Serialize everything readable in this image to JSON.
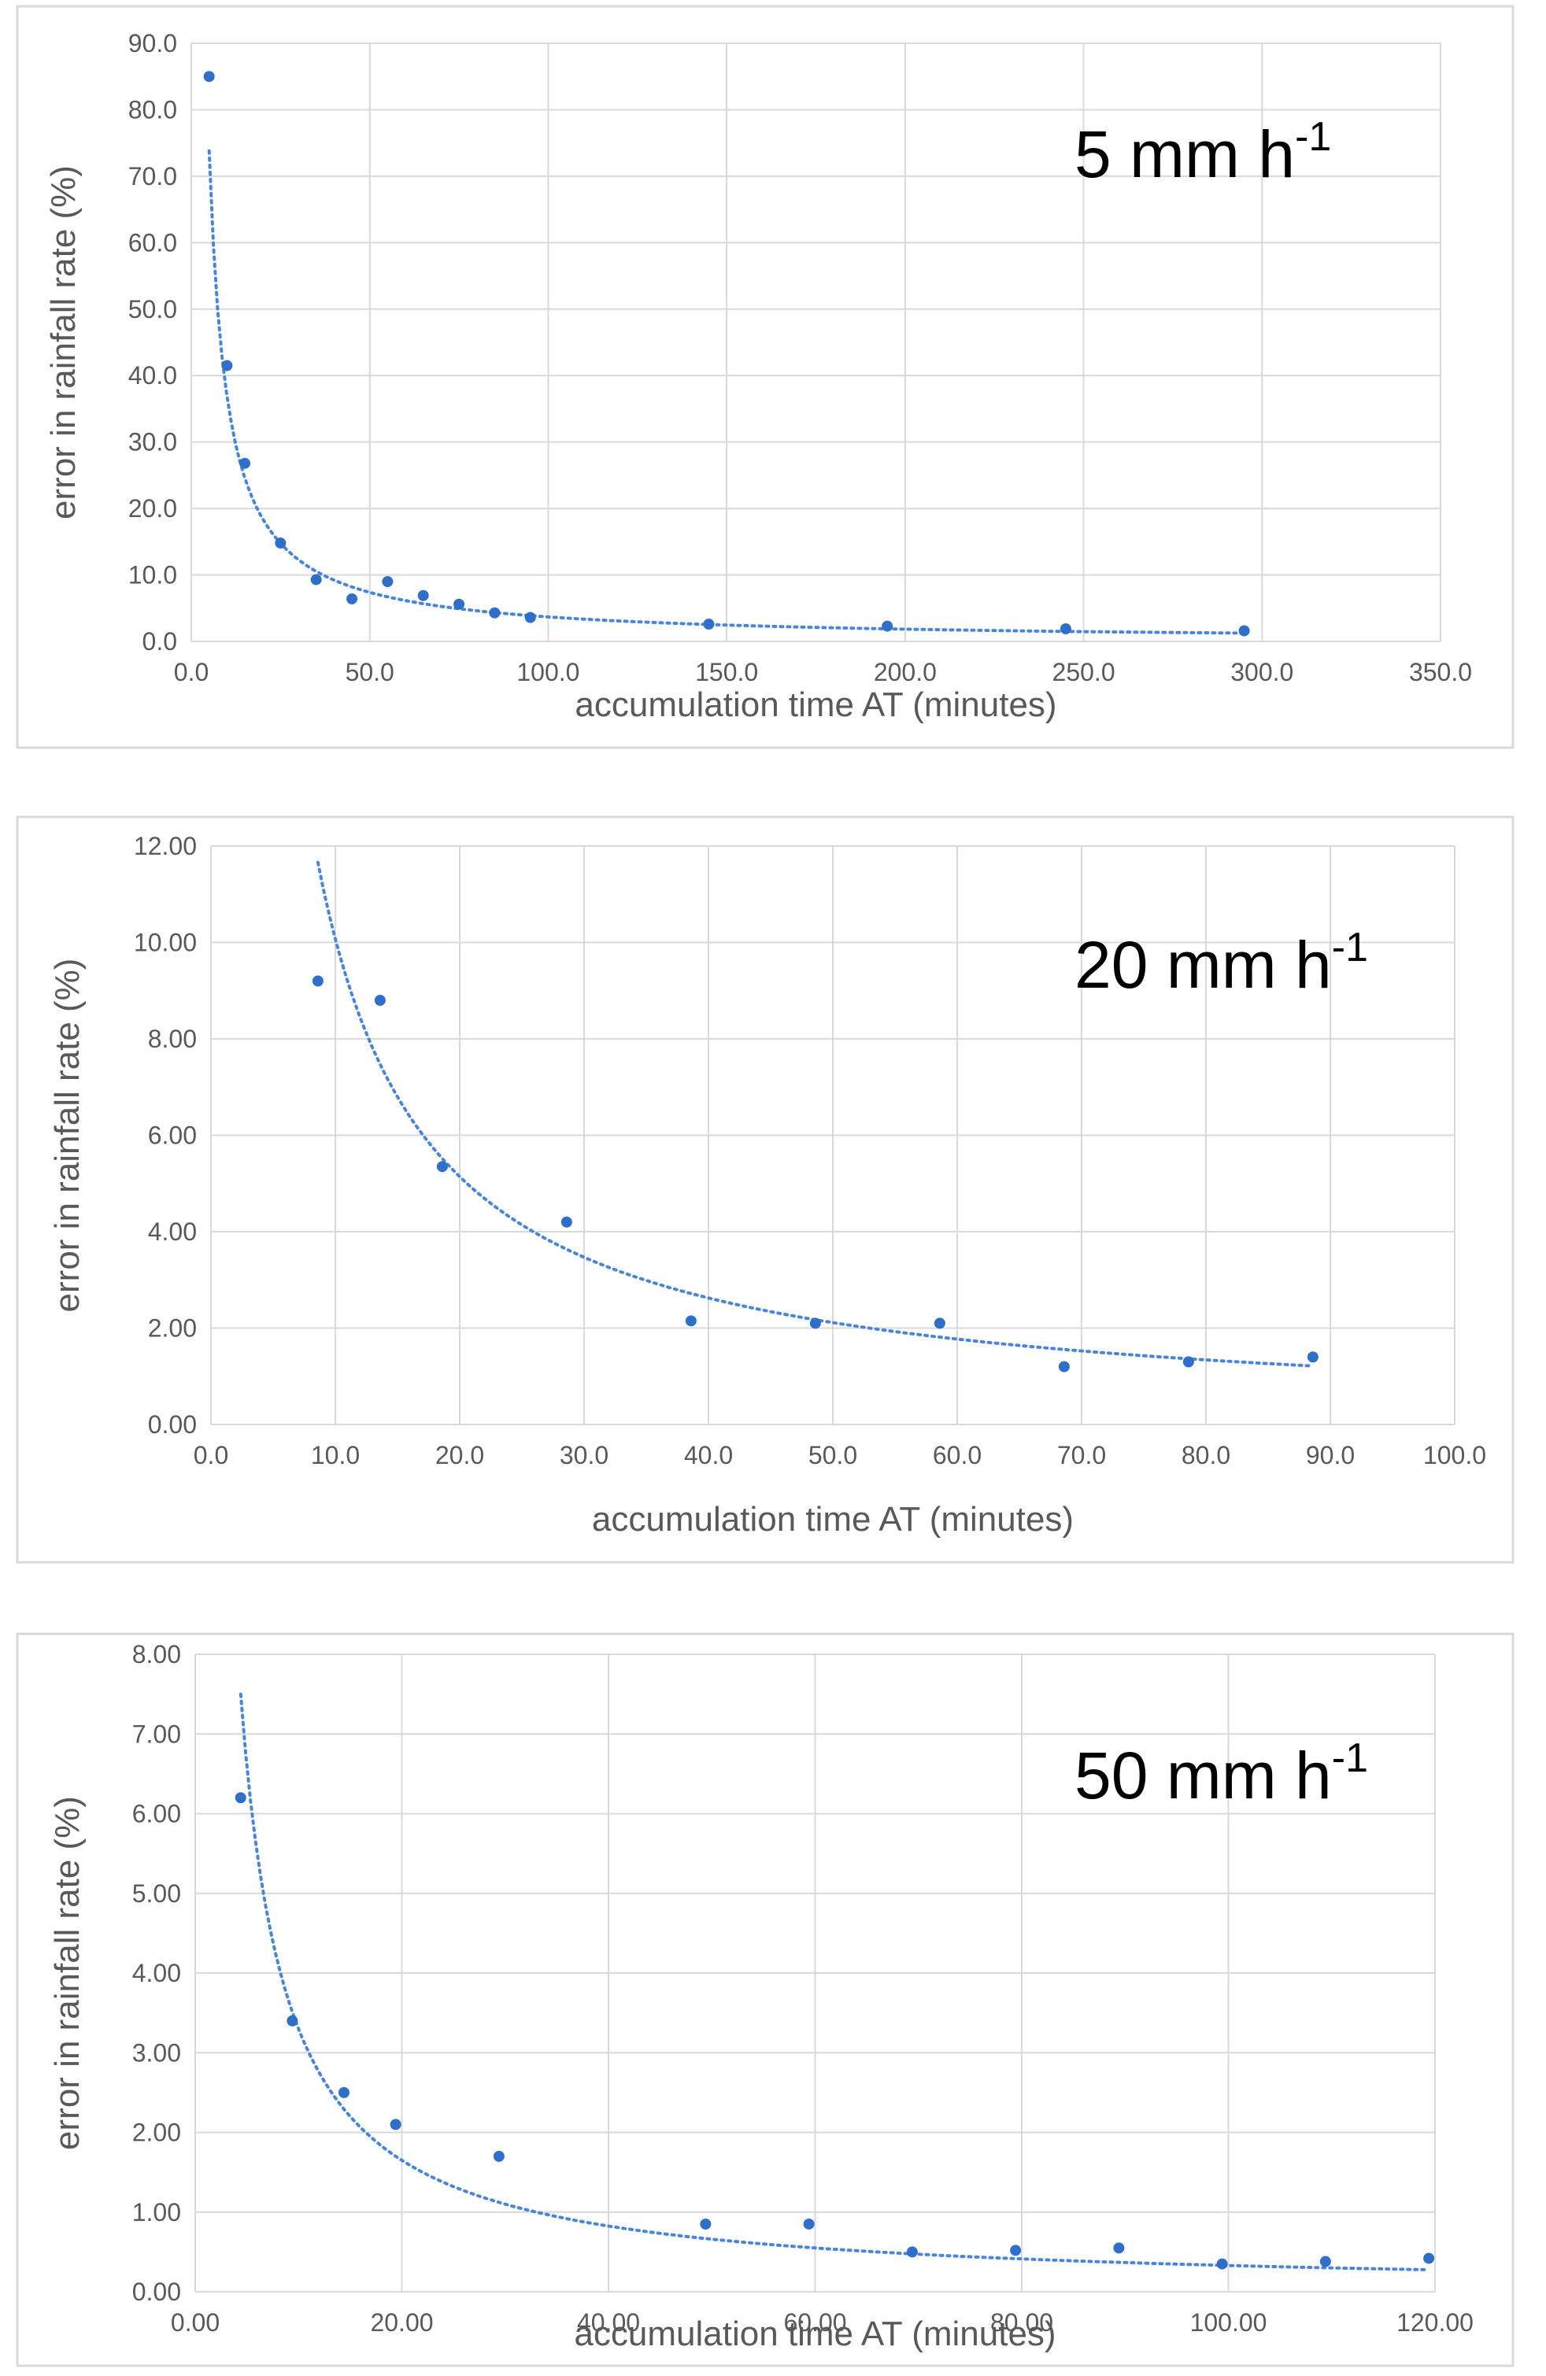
{
  "chart_data": [
    {
      "type": "scatter",
      "title": "",
      "annotation": "5 mm h",
      "annotation_sup": "-1",
      "xlabel": "accumulation time AT (minutes)",
      "ylabel": "error in rainfall rate (%)",
      "xlim": [
        0,
        350
      ],
      "ylim": [
        0,
        90
      ],
      "xticks": [
        "0.0",
        "50.0",
        "100.0",
        "150.0",
        "200.0",
        "250.0",
        "300.0",
        "350.0"
      ],
      "yticks": [
        "0.0",
        "10.0",
        "20.0",
        "30.0",
        "40.0",
        "50.0",
        "60.0",
        "70.0",
        "80.0",
        "90.0"
      ],
      "grid": true,
      "series": [
        {
          "x": [
            5,
            10,
            15,
            25,
            35,
            45,
            55,
            65,
            75,
            85,
            95,
            145,
            195,
            245,
            295
          ],
          "y": [
            85,
            41.5,
            26.8,
            14.8,
            9.3,
            6.4,
            9.0,
            6.9,
            5.6,
            4.3,
            3.6,
            2.6,
            2.3,
            1.9,
            1.6
          ]
        }
      ],
      "trendline": {
        "type": "power",
        "a": 369,
        "b": -1.0,
        "x_range": [
          5,
          295
        ]
      }
    },
    {
      "type": "scatter",
      "title": "",
      "annotation": "20 mm h",
      "annotation_sup": "-1",
      "xlabel": "accumulation time AT (minutes)",
      "ylabel": "error in rainfall rate (%)",
      "xlim": [
        0,
        100
      ],
      "ylim": [
        0,
        12
      ],
      "xticks": [
        "0.0",
        "10.0",
        "20.0",
        "30.0",
        "40.0",
        "50.0",
        "60.0",
        "70.0",
        "80.0",
        "90.0",
        "100.0"
      ],
      "yticks": [
        "0.00",
        "2.00",
        "4.00",
        "6.00",
        "8.00",
        "10.00",
        "12.00"
      ],
      "grid": true,
      "series": [
        {
          "x": [
            8.6,
            13.6,
            18.6,
            28.6,
            38.6,
            48.6,
            58.6,
            68.6,
            78.6,
            88.6
          ],
          "y": [
            9.2,
            8.8,
            5.35,
            4.2,
            2.15,
            2.1,
            2.1,
            1.2,
            1.3,
            1.4
          ]
        }
      ],
      "trendline": {
        "type": "power",
        "a": 94,
        "b": -0.97,
        "x_range": [
          8.6,
          88.6
        ]
      }
    },
    {
      "type": "scatter",
      "title": "",
      "annotation": "50 mm h",
      "annotation_sup": "-1",
      "xlabel": "accumulation time AT (minutes)",
      "ylabel": "error in rainfall rate (%)",
      "xlim": [
        0,
        120
      ],
      "ylim": [
        0,
        8
      ],
      "xticks": [
        "0.00",
        "20.00",
        "40.00",
        "60.00",
        "80.00",
        "100.00",
        "120.00"
      ],
      "yticks": [
        "0.00",
        "1.00",
        "2.00",
        "3.00",
        "4.00",
        "5.00",
        "6.00",
        "7.00",
        "8.00"
      ],
      "grid": true,
      "series": [
        {
          "x": [
            4.4,
            9.4,
            14.4,
            19.4,
            29.4,
            49.4,
            59.4,
            69.4,
            79.4,
            89.4,
            99.4,
            109.4,
            119.4
          ],
          "y": [
            6.2,
            3.4,
            2.5,
            2.1,
            1.7,
            0.85,
            0.85,
            0.5,
            0.52,
            0.55,
            0.35,
            0.38,
            0.42
          ]
        }
      ],
      "trendline": {
        "type": "power",
        "a": 33,
        "b": -1.0,
        "x_range": [
          4.4,
          119.4
        ]
      }
    }
  ]
}
